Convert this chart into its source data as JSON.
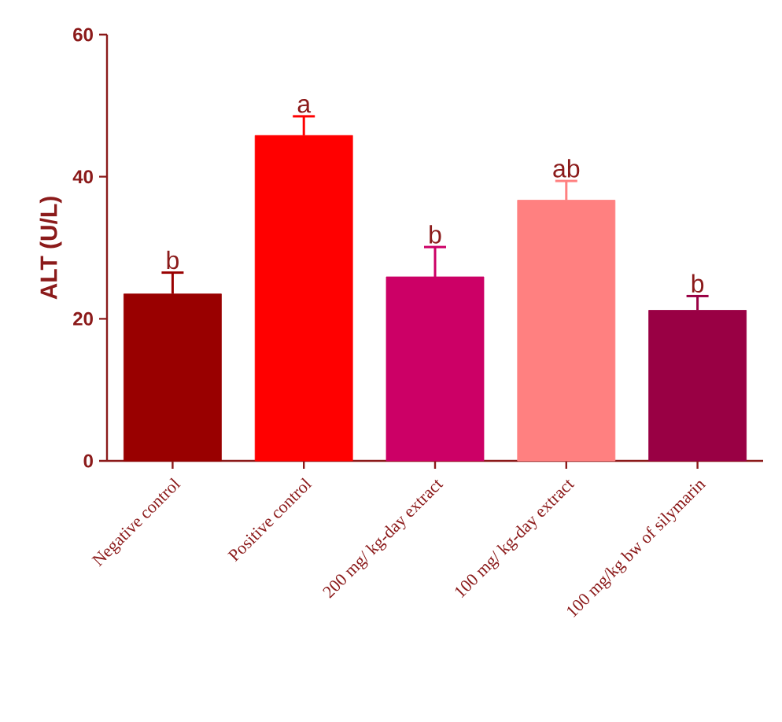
{
  "chart_data": {
    "type": "bar",
    "ylabel": "ALT (U/L)",
    "categories": [
      "Negative control",
      "Positive control",
      "200 mg/ kg-day extract",
      "100 mg/ kg-day extract",
      "100 mg/kg bw of silymarin"
    ],
    "values": [
      23.5,
      45.8,
      25.9,
      36.7,
      21.2
    ],
    "errors": [
      3.0,
      2.7,
      4.2,
      2.7,
      2.0
    ],
    "colors": [
      "#990000",
      "#ff0000",
      "#cc0066",
      "#ff8080",
      "#990044"
    ],
    "ylim": [
      0,
      60
    ],
    "yticks": [
      0,
      20,
      40,
      60
    ],
    "annotations": [
      {
        "text": "b",
        "x": "Negative control",
        "y": 26.5
      },
      {
        "text": "a",
        "x": "Positive control",
        "y": 48.5
      },
      {
        "text": "b",
        "x": "200 mg/ kg-day extract",
        "y": 30.1
      },
      {
        "text": "ab",
        "x": "100 mg/ kg-day extract",
        "y": 39.4
      },
      {
        "text": "b",
        "x": "100 mg/kg bw of silymarin",
        "y": 23.2
      }
    ]
  }
}
